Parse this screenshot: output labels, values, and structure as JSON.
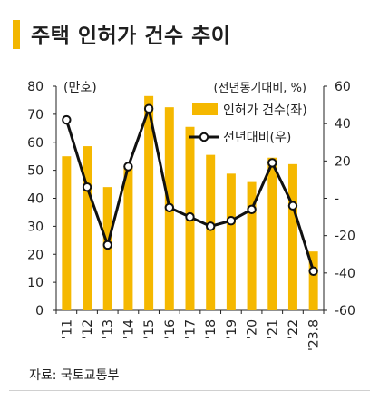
{
  "title": "주택 인허가 건수 추이",
  "source": "자료: 국토교통부",
  "chart_data": {
    "type": "bar",
    "categories": [
      "'11",
      "'12",
      "'13",
      "'14",
      "'15",
      "'16",
      "'17",
      "'18",
      "'19",
      "'20",
      "'21",
      "'22",
      "'23.8"
    ],
    "series": [
      {
        "name": "인허가 건수(좌)",
        "type": "bar",
        "axis": "left",
        "color": "#f5b800",
        "values": [
          55,
          58.6,
          44,
          51.5,
          76.5,
          72.5,
          65.5,
          55.5,
          48.8,
          45.8,
          54.5,
          52.2,
          21
        ]
      },
      {
        "name": "전년대비(우)",
        "type": "line",
        "axis": "right",
        "color": "#111111",
        "values": [
          42,
          6,
          -25,
          17,
          48,
          -5,
          -10,
          -15,
          -12,
          -6,
          19,
          -4,
          -39
        ]
      }
    ],
    "left_axis": {
      "label": "(만호)",
      "min": 0,
      "max": 80,
      "ticks": [
        "0",
        "10",
        "20",
        "30",
        "40",
        "50",
        "60",
        "70",
        "80"
      ]
    },
    "right_axis": {
      "label": "(전년동기대비, %)",
      "min": -60,
      "max": 60,
      "ticks": [
        "-60",
        "-40",
        "-20",
        "-",
        "20",
        "40",
        "60"
      ]
    },
    "legend_position": "top-right",
    "grid": false
  }
}
